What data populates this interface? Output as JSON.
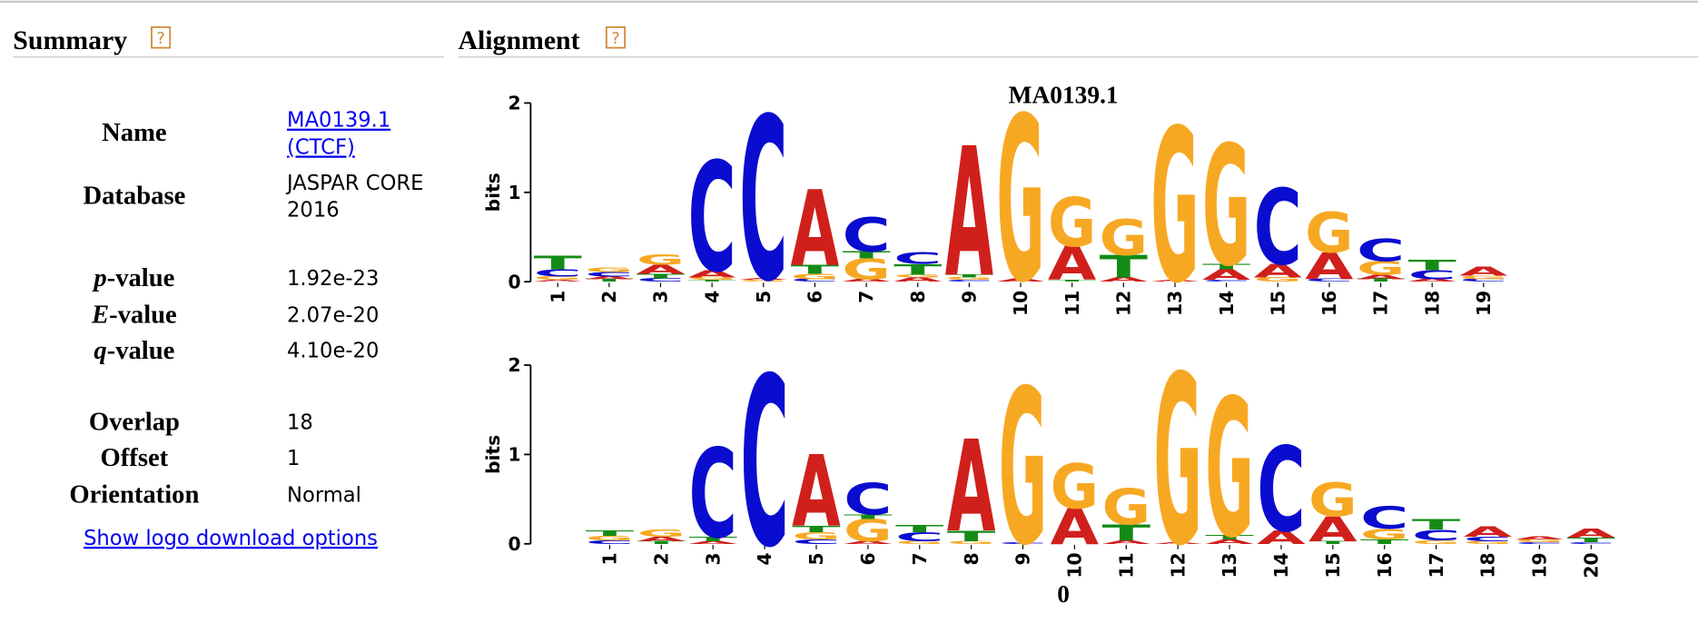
{
  "header": {
    "summary": "Summary",
    "alignment": "Alignment",
    "help": "?"
  },
  "summary": {
    "rows": [
      {
        "label": "Name",
        "value": [
          "MA0139.1",
          "(CTCF)"
        ]
      },
      {
        "label": "Database",
        "value": [
          "JASPAR CORE",
          "2016"
        ]
      },
      {
        "label_italic": "p",
        "label": "-value",
        "value": [
          "1.92e-23"
        ]
      },
      {
        "label_italic": "E",
        "label": "-value",
        "value": [
          "2.07e-20"
        ]
      },
      {
        "label_italic": "q",
        "label": "-value",
        "value": [
          "4.10e-20"
        ]
      },
      {
        "label": "Overlap",
        "value": [
          "18"
        ]
      },
      {
        "label": "Offset",
        "value": [
          "1"
        ]
      },
      {
        "label": "Orientation",
        "value": [
          "Normal"
        ]
      }
    ]
  },
  "download_link": "Show logo download options",
  "chart_data": [
    {
      "type": "logo",
      "title": "MA0139.1",
      "ylabel": "bits",
      "ylim": [
        0,
        2
      ],
      "yticks": [
        0,
        1,
        2
      ],
      "colors": {
        "A": "#d0201c",
        "C": "#0a0ccf",
        "G": "#f7a823",
        "T": "#138b16"
      },
      "categories": [
        "1",
        "2",
        "3",
        "4",
        "5",
        "6",
        "7",
        "8",
        "9",
        "10",
        "11",
        "12",
        "13",
        "14",
        "15",
        "16",
        "17",
        "18",
        "19"
      ],
      "stacks": [
        [
          [
            "A",
            0.02
          ],
          [
            "G",
            0.04
          ],
          [
            "C",
            0.08
          ],
          [
            "T",
            0.15
          ]
        ],
        [
          [
            "T",
            0.03
          ],
          [
            "A",
            0.03
          ],
          [
            "C",
            0.05
          ],
          [
            "G",
            0.05
          ]
        ],
        [
          [
            "C",
            0.04
          ],
          [
            "T",
            0.05
          ],
          [
            "A",
            0.1
          ],
          [
            "G",
            0.12
          ]
        ],
        [
          [
            "T",
            0.02
          ],
          [
            "G",
            0.03
          ],
          [
            "A",
            0.08
          ],
          [
            "C",
            1.23
          ]
        ],
        [
          [
            "G",
            0.02
          ],
          [
            "A",
            0.02
          ],
          [
            "C",
            1.83
          ]
        ],
        [
          [
            "C",
            0.03
          ],
          [
            "G",
            0.06
          ],
          [
            "T",
            0.1
          ],
          [
            "A",
            0.85
          ]
        ],
        [
          [
            "A",
            0.03
          ],
          [
            "G",
            0.23
          ],
          [
            "T",
            0.08
          ],
          [
            "C",
            0.38
          ]
        ],
        [
          [
            "A",
            0.05
          ],
          [
            "G",
            0.03
          ],
          [
            "T",
            0.12
          ],
          [
            "C",
            0.13
          ]
        ],
        [
          [
            "C",
            0.02
          ],
          [
            "G",
            0.03
          ],
          [
            "T",
            0.03
          ],
          [
            "A",
            1.45
          ]
        ],
        [
          [
            "A",
            0.03
          ],
          [
            "G",
            1.85
          ]
        ],
        [
          [
            "T",
            0.02
          ],
          [
            "A",
            0.38
          ],
          [
            "G",
            0.55
          ]
        ],
        [
          [
            "A",
            0.05
          ],
          [
            "T",
            0.25
          ],
          [
            "G",
            0.4
          ]
        ],
        [
          [
            "A",
            0.02
          ],
          [
            "G",
            1.72
          ]
        ],
        [
          [
            "C",
            0.02
          ],
          [
            "A",
            0.12
          ],
          [
            "T",
            0.06
          ],
          [
            "G",
            1.35
          ]
        ],
        [
          [
            "G",
            0.05
          ],
          [
            "A",
            0.15
          ],
          [
            "C",
            0.85
          ]
        ],
        [
          [
            "C",
            0.03
          ],
          [
            "A",
            0.3
          ],
          [
            "G",
            0.45
          ]
        ],
        [
          [
            "T",
            0.03
          ],
          [
            "A",
            0.05
          ],
          [
            "G",
            0.15
          ],
          [
            "C",
            0.25
          ]
        ],
        [
          [
            "A",
            0.03
          ],
          [
            "C",
            0.1
          ],
          [
            "T",
            0.12
          ]
        ],
        [
          [
            "C",
            0.03
          ],
          [
            "G",
            0.04
          ],
          [
            "A",
            0.1
          ]
        ]
      ]
    },
    {
      "type": "logo",
      "ylabel": "bits",
      "xlabel": "0",
      "ylim": [
        0,
        2
      ],
      "yticks": [
        0,
        1,
        2
      ],
      "colors": {
        "A": "#d0201c",
        "C": "#0a0ccf",
        "G": "#f7a823",
        "T": "#138b16"
      },
      "categories": [
        "1",
        "2",
        "3",
        "4",
        "5",
        "6",
        "7",
        "8",
        "9",
        "10",
        "11",
        "12",
        "13",
        "14",
        "15",
        "16",
        "17",
        "18",
        "19",
        "20"
      ],
      "stacks": [
        [
          [
            "C",
            0.04
          ],
          [
            "G",
            0.05
          ],
          [
            "T",
            0.06
          ]
        ],
        [
          [
            "T",
            0.03
          ],
          [
            "A",
            0.05
          ],
          [
            "G",
            0.08
          ]
        ],
        [
          [
            "A",
            0.03
          ],
          [
            "T",
            0.05
          ],
          [
            "C",
            1.0
          ]
        ],
        [
          [
            "C",
            1.9
          ]
        ],
        [
          [
            "C",
            0.05
          ],
          [
            "G",
            0.08
          ],
          [
            "T",
            0.07
          ],
          [
            "A",
            0.8
          ]
        ],
        [
          [
            "A",
            0.03
          ],
          [
            "G",
            0.25
          ],
          [
            "T",
            0.05
          ],
          [
            "C",
            0.35
          ]
        ],
        [
          [
            "G",
            0.03
          ],
          [
            "C",
            0.1
          ],
          [
            "T",
            0.08
          ]
        ],
        [
          [
            "G",
            0.03
          ],
          [
            "T",
            0.12
          ],
          [
            "A",
            1.03
          ]
        ],
        [
          [
            "C",
            0.02
          ],
          [
            "G",
            1.74
          ]
        ],
        [
          [
            "A",
            0.4
          ],
          [
            "G",
            0.5
          ]
        ],
        [
          [
            "A",
            0.04
          ],
          [
            "T",
            0.18
          ],
          [
            "G",
            0.4
          ]
        ],
        [
          [
            "A",
            0.02
          ],
          [
            "G",
            1.9
          ]
        ],
        [
          [
            "A",
            0.05
          ],
          [
            "T",
            0.05
          ],
          [
            "G",
            1.55
          ]
        ],
        [
          [
            "A",
            0.15
          ],
          [
            "C",
            0.95
          ]
        ],
        [
          [
            "T",
            0.03
          ],
          [
            "A",
            0.28
          ],
          [
            "G",
            0.38
          ]
        ],
        [
          [
            "T",
            0.05
          ],
          [
            "G",
            0.12
          ],
          [
            "C",
            0.25
          ]
        ],
        [
          [
            "G",
            0.04
          ],
          [
            "C",
            0.12
          ],
          [
            "T",
            0.12
          ]
        ],
        [
          [
            "G",
            0.03
          ],
          [
            "C",
            0.05
          ],
          [
            "A",
            0.12
          ]
        ],
        [
          [
            "C",
            0.02
          ],
          [
            "G",
            0.03
          ],
          [
            "A",
            0.03
          ]
        ],
        [
          [
            "C",
            0.02
          ],
          [
            "T",
            0.05
          ],
          [
            "A",
            0.1
          ]
        ]
      ]
    }
  ]
}
